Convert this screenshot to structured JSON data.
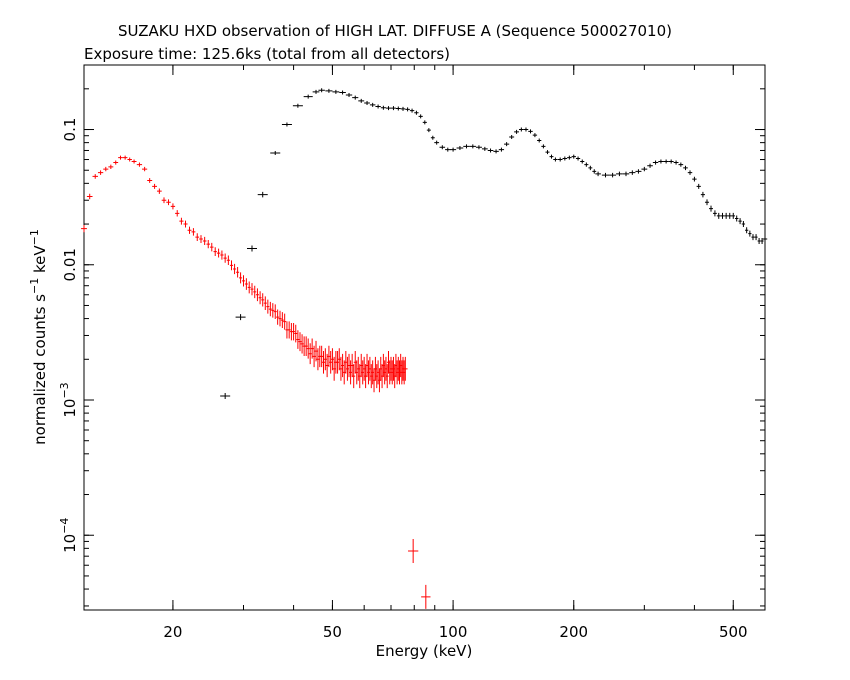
{
  "chart_data": {
    "type": "scatter",
    "title": "SUZAKU HXD observation of HIGH LAT. DIFFUSE A (Sequence 500027010)",
    "subtitle": "Exposure time: 125.6ks (total from all detectors)",
    "xlabel": "Energy (keV)",
    "ylabel": {
      "base": "normalized counts s",
      "sup1": "−1",
      "mid": " keV",
      "sup2": "−1"
    },
    "x_scale": "log",
    "y_scale": "log",
    "xlim": [
      12,
      600
    ],
    "ylim": [
      2.8e-05,
      0.3
    ],
    "x_ticks": [
      {
        "value": 20,
        "label": "20"
      },
      {
        "value": 50,
        "label": "50"
      },
      {
        "value": 100,
        "label": "100"
      },
      {
        "value": 200,
        "label": "200"
      },
      {
        "value": 500,
        "label": "500"
      }
    ],
    "y_ticks": [
      {
        "value": 0.1,
        "base": "0.1",
        "exp": ""
      },
      {
        "value": 0.01,
        "base": "0.01",
        "exp": ""
      },
      {
        "value": 0.001,
        "base": "10",
        "exp": "−3"
      },
      {
        "value": 0.0001,
        "base": "10",
        "exp": "−4"
      }
    ],
    "series": [
      {
        "color": "#ff0000",
        "points": [
          [
            12.0,
            0.0185
          ],
          [
            12.4,
            0.032
          ],
          [
            12.8,
            0.045
          ],
          [
            13.2,
            0.048
          ],
          [
            13.6,
            0.051
          ],
          [
            14.0,
            0.053
          ],
          [
            14.4,
            0.057
          ],
          [
            14.8,
            0.062
          ],
          [
            15.2,
            0.062
          ],
          [
            15.6,
            0.06
          ],
          [
            16.0,
            0.058
          ],
          [
            16.5,
            0.055
          ],
          [
            17.0,
            0.051
          ],
          [
            17.5,
            0.042
          ],
          [
            18.0,
            0.038
          ],
          [
            18.5,
            0.035
          ],
          [
            19.0,
            0.03
          ],
          [
            19.5,
            0.029
          ],
          [
            20.0,
            0.027
          ],
          [
            20.5,
            0.024
          ],
          [
            21.0,
            0.021
          ],
          [
            21.5,
            0.02
          ],
          [
            22.0,
            0.018
          ],
          [
            22.5,
            0.0175
          ],
          [
            23.0,
            0.016
          ],
          [
            23.5,
            0.0155
          ],
          [
            24.0,
            0.015
          ],
          [
            24.5,
            0.0142
          ],
          [
            25.0,
            0.0135
          ],
          [
            25.5,
            0.0125
          ],
          [
            26.0,
            0.0122
          ],
          [
            26.5,
            0.0118
          ],
          [
            27.0,
            0.0112
          ],
          [
            27.5,
            0.0108
          ],
          [
            28.0,
            0.0099
          ],
          [
            28.5,
            0.0093
          ],
          [
            29.0,
            0.0088
          ],
          [
            29.5,
            0.008
          ],
          [
            30.0,
            0.0076
          ],
          [
            30.5,
            0.0072
          ],
          [
            31.0,
            0.0068
          ],
          [
            31.5,
            0.0066
          ],
          [
            32.0,
            0.0063
          ],
          [
            32.5,
            0.006
          ],
          [
            33.0,
            0.0057
          ],
          [
            33.5,
            0.0055
          ],
          [
            34.0,
            0.0052
          ],
          [
            34.5,
            0.0049
          ],
          [
            35.0,
            0.0047
          ],
          [
            35.5,
            0.0046
          ],
          [
            36.0,
            0.0045
          ],
          [
            36.5,
            0.0041
          ],
          [
            37.0,
            0.004
          ],
          [
            37.5,
            0.0039
          ],
          [
            38.0,
            0.0038
          ],
          [
            38.5,
            0.0033
          ],
          [
            39.0,
            0.0033
          ],
          [
            39.5,
            0.0032
          ],
          [
            40.0,
            0.0032
          ],
          [
            40.5,
            0.0031
          ],
          [
            41.0,
            0.0028
          ],
          [
            41.5,
            0.0027
          ],
          [
            42.0,
            0.0026
          ],
          [
            42.5,
            0.0025
          ],
          [
            43.0,
            0.0025
          ],
          [
            43.5,
            0.0024
          ],
          [
            44.0,
            0.0022
          ],
          [
            44.5,
            0.0024
          ],
          [
            45.0,
            0.0021
          ],
          [
            45.5,
            0.0023
          ],
          [
            46.0,
            0.002
          ],
          [
            46.5,
            0.0021
          ],
          [
            47.0,
            0.0021
          ],
          [
            47.5,
            0.0019
          ],
          [
            48.0,
            0.002
          ],
          [
            48.5,
            0.0018
          ],
          [
            49.0,
            0.0021
          ],
          [
            49.5,
            0.0019
          ],
          [
            50.0,
            0.002
          ],
          [
            50.5,
            0.0017
          ],
          [
            51.0,
            0.0019
          ],
          [
            51.5,
            0.0019
          ],
          [
            52.0,
            0.002
          ],
          [
            52.5,
            0.0017
          ],
          [
            53.0,
            0.0018
          ],
          [
            53.5,
            0.0016
          ],
          [
            54.0,
            0.0019
          ],
          [
            54.5,
            0.0017
          ],
          [
            55.0,
            0.0018
          ],
          [
            55.5,
            0.0016
          ],
          [
            56.0,
            0.0018
          ],
          [
            56.5,
            0.0015
          ],
          [
            57.0,
            0.0019
          ],
          [
            57.5,
            0.0016
          ],
          [
            58.0,
            0.0017
          ],
          [
            58.5,
            0.0015
          ],
          [
            59.0,
            0.0018
          ],
          [
            59.5,
            0.0016
          ],
          [
            60.0,
            0.0017
          ],
          [
            60.5,
            0.0015
          ],
          [
            61.0,
            0.0018
          ],
          [
            61.5,
            0.0016
          ],
          [
            62.0,
            0.0017
          ],
          [
            62.5,
            0.0015
          ],
          [
            63.0,
            0.0016
          ],
          [
            63.5,
            0.0014
          ],
          [
            64.0,
            0.0017
          ],
          [
            64.5,
            0.0015
          ],
          [
            65.0,
            0.0016
          ],
          [
            65.5,
            0.0014
          ],
          [
            66.0,
            0.0017
          ],
          [
            66.5,
            0.0015
          ],
          [
            67.0,
            0.0018
          ],
          [
            67.5,
            0.0016
          ],
          [
            68.0,
            0.0017
          ],
          [
            68.5,
            0.0015
          ],
          [
            69.0,
            0.0019
          ],
          [
            69.5,
            0.0016
          ],
          [
            70.0,
            0.0017
          ],
          [
            70.5,
            0.0016
          ],
          [
            71.0,
            0.0017
          ],
          [
            71.5,
            0.0015
          ],
          [
            72.0,
            0.0018
          ],
          [
            72.5,
            0.0016
          ],
          [
            73.0,
            0.0017
          ],
          [
            73.5,
            0.0016
          ],
          [
            74.0,
            0.0018
          ],
          [
            74.5,
            0.0016
          ],
          [
            75.0,
            0.0017
          ],
          [
            75.5,
            0.0016
          ],
          [
            76.0,
            0.0017
          ],
          [
            79.5,
            7.65e-05
          ],
          [
            85.5,
            3.5e-05
          ]
        ]
      },
      {
        "color": "#000000",
        "points": [
          [
            27.0,
            0.00107
          ],
          [
            29.5,
            0.0041
          ],
          [
            31.5,
            0.0132
          ],
          [
            33.5,
            0.033
          ],
          [
            36.0,
            0.067
          ],
          [
            38.5,
            0.109
          ],
          [
            41.0,
            0.15
          ],
          [
            43.5,
            0.175
          ],
          [
            45.5,
            0.19
          ],
          [
            47.0,
            0.195
          ],
          [
            49.0,
            0.193
          ],
          [
            51.0,
            0.19
          ],
          [
            53.0,
            0.188
          ],
          [
            55.0,
            0.18
          ],
          [
            57.0,
            0.172
          ],
          [
            59.0,
            0.163
          ],
          [
            61.0,
            0.157
          ],
          [
            63.0,
            0.152
          ],
          [
            65.0,
            0.148
          ],
          [
            67.0,
            0.145
          ],
          [
            69.0,
            0.144
          ],
          [
            71.0,
            0.144
          ],
          [
            73.0,
            0.143
          ],
          [
            75.0,
            0.142
          ],
          [
            77.0,
            0.141
          ],
          [
            79.0,
            0.138
          ],
          [
            81.0,
            0.133
          ],
          [
            83.0,
            0.125
          ],
          [
            85.0,
            0.113
          ],
          [
            87.0,
            0.099
          ],
          [
            89.0,
            0.087
          ],
          [
            91.0,
            0.08
          ],
          [
            94.0,
            0.074
          ],
          [
            97.0,
            0.071
          ],
          [
            100.0,
            0.071
          ],
          [
            104.0,
            0.073
          ],
          [
            108.0,
            0.075
          ],
          [
            112.0,
            0.075
          ],
          [
            116.0,
            0.074
          ],
          [
            120.0,
            0.072
          ],
          [
            124.0,
            0.07
          ],
          [
            128.0,
            0.069
          ],
          [
            132.0,
            0.071
          ],
          [
            136.0,
            0.078
          ],
          [
            140.0,
            0.088
          ],
          [
            144.0,
            0.096
          ],
          [
            148.0,
            0.1
          ],
          [
            152.0,
            0.1
          ],
          [
            156.0,
            0.097
          ],
          [
            160.0,
            0.091
          ],
          [
            164.0,
            0.083
          ],
          [
            168.0,
            0.075
          ],
          [
            172.0,
            0.068
          ],
          [
            176.0,
            0.063
          ],
          [
            180.0,
            0.06
          ],
          [
            185.0,
            0.06
          ],
          [
            190.0,
            0.061
          ],
          [
            195.0,
            0.062
          ],
          [
            200.0,
            0.063
          ],
          [
            205.0,
            0.061
          ],
          [
            210.0,
            0.058
          ],
          [
            215.0,
            0.055
          ],
          [
            220.0,
            0.052
          ],
          [
            225.0,
            0.049
          ],
          [
            230.0,
            0.047
          ],
          [
            240.0,
            0.046
          ],
          [
            250.0,
            0.046
          ],
          [
            260.0,
            0.047
          ],
          [
            270.0,
            0.047
          ],
          [
            280.0,
            0.048
          ],
          [
            290.0,
            0.049
          ],
          [
            300.0,
            0.051
          ],
          [
            310.0,
            0.054
          ],
          [
            320.0,
            0.057
          ],
          [
            330.0,
            0.058
          ],
          [
            340.0,
            0.058
          ],
          [
            350.0,
            0.058
          ],
          [
            360.0,
            0.057
          ],
          [
            370.0,
            0.055
          ],
          [
            380.0,
            0.052
          ],
          [
            390.0,
            0.048
          ],
          [
            400.0,
            0.043
          ],
          [
            410.0,
            0.038
          ],
          [
            420.0,
            0.033
          ],
          [
            430.0,
            0.029
          ],
          [
            440.0,
            0.026
          ],
          [
            450.0,
            0.024
          ],
          [
            460.0,
            0.023
          ],
          [
            470.0,
            0.023
          ],
          [
            480.0,
            0.023
          ],
          [
            490.0,
            0.023
          ],
          [
            500.0,
            0.023
          ],
          [
            510.0,
            0.022
          ],
          [
            520.0,
            0.021
          ],
          [
            530.0,
            0.02
          ],
          [
            540.0,
            0.018
          ],
          [
            550.0,
            0.017
          ],
          [
            560.0,
            0.016
          ],
          [
            570.0,
            0.016
          ],
          [
            580.0,
            0.015
          ],
          [
            590.0,
            0.015
          ],
          [
            600.0,
            0.0155
          ]
        ]
      }
    ]
  }
}
